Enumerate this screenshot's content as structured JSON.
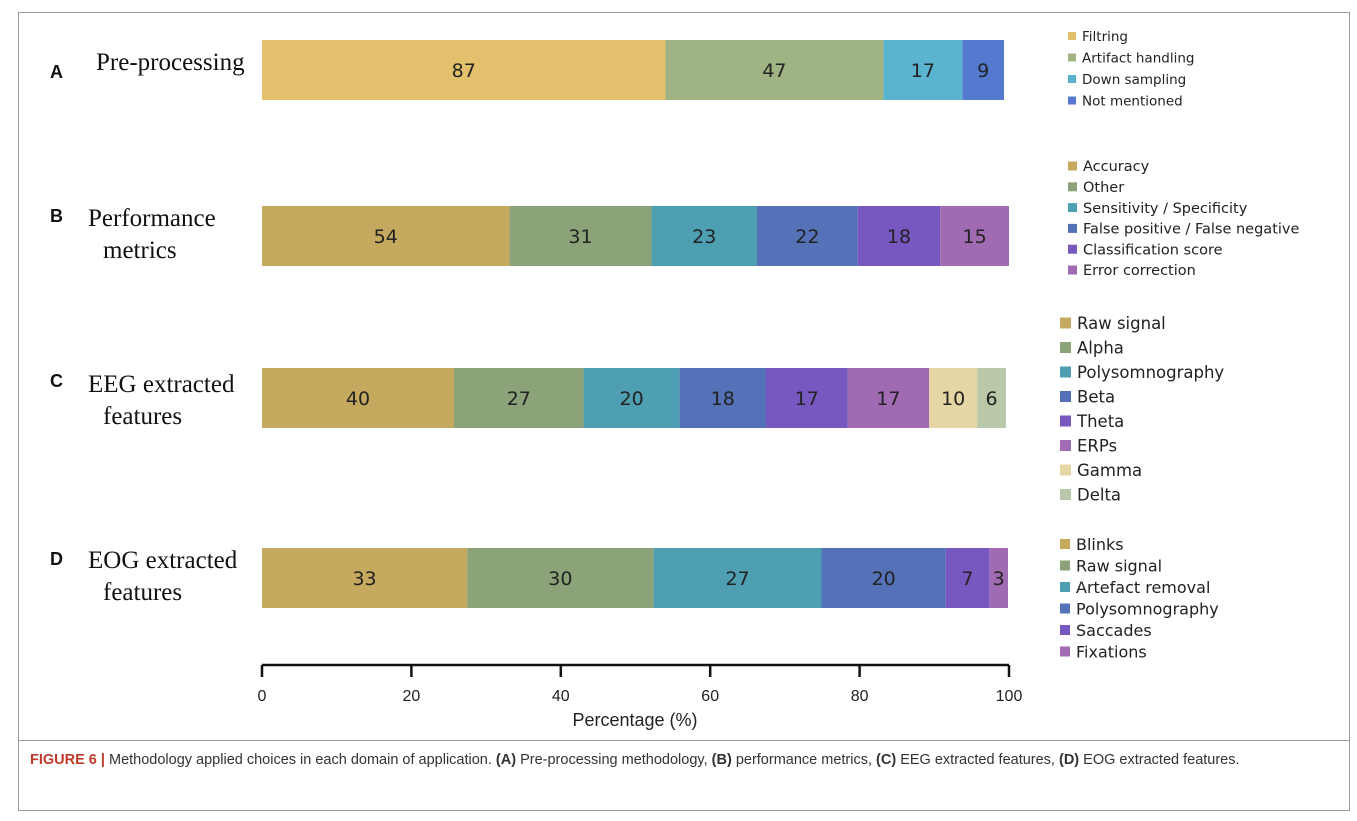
{
  "chart_data": [
    {
      "type": "bar",
      "orientation": "horizontal-stacked",
      "panel": "A",
      "title": "Pre-processing",
      "series": [
        {
          "name": "Filtring",
          "value": 87,
          "color": "#e3c06b"
        },
        {
          "name": "Artifact handling",
          "value": 47,
          "color": "#9fb383"
        },
        {
          "name": "Down sampling",
          "value": 17,
          "color": "#5ab3cf"
        },
        {
          "name": "Not mentioned",
          "value": 9,
          "color": "#5479cf"
        }
      ]
    },
    {
      "type": "bar",
      "orientation": "horizontal-stacked",
      "panel": "B",
      "title": "Performance metrics",
      "series": [
        {
          "name": "Accuracy",
          "value": 54,
          "color": "#c4a95e"
        },
        {
          "name": "Other",
          "value": 31,
          "color": "#8ca278"
        },
        {
          "name": "Sensitivity / Specificity",
          "value": 23,
          "color": "#4f9fb3"
        },
        {
          "name": "False positive / False negative",
          "value": 22,
          "color": "#5571b7"
        },
        {
          "name": "Classification score",
          "value": 18,
          "color": "#7757c0"
        },
        {
          "name": " Error correction",
          "value": 15,
          "color": "#a06bb2"
        }
      ]
    },
    {
      "type": "bar",
      "orientation": "horizontal-stacked",
      "panel": "C",
      "title": "EEG extracted features",
      "series": [
        {
          "name": "Raw signal",
          "value": 40,
          "color": "#c4a95e"
        },
        {
          "name": "Alpha",
          "value": 27,
          "color": "#8ca278"
        },
        {
          "name": "Polysomnography",
          "value": 20,
          "color": "#4f9fb3"
        },
        {
          "name": "Beta",
          "value": 18,
          "color": "#5571b7"
        },
        {
          "name": "Theta",
          "value": 17,
          "color": "#7757c0"
        },
        {
          "name": "ERPs",
          "value": 17,
          "color": "#a06bb2"
        },
        {
          "name": "Gamma",
          "value": 10,
          "color": "#e6d6a6"
        },
        {
          "name": "Delta",
          "value": 6,
          "color": "#b8c8a8"
        }
      ]
    },
    {
      "type": "bar",
      "orientation": "horizontal-stacked",
      "panel": "D",
      "title": "EOG extracted features",
      "series": [
        {
          "name": "Blinks",
          "value": 33,
          "color": "#c4a95e"
        },
        {
          "name": "Raw signal",
          "value": 30,
          "color": "#8ca278"
        },
        {
          "name": "Artefact removal",
          "value": 27,
          "color": "#4f9fb3"
        },
        {
          "name": "Polysomnography",
          "value": 20,
          "color": "#5571b7"
        },
        {
          "name": "Saccades",
          "value": 7,
          "color": "#7757c0"
        },
        {
          "name": "Fixations",
          "value": 3,
          "color": "#a06bb2"
        }
      ]
    }
  ],
  "axis": {
    "xlabel": "Percentage (%)",
    "xlim": [
      0,
      100
    ],
    "ticks": [
      "0",
      "20",
      "40",
      "60",
      "80",
      "100"
    ]
  },
  "caption": {
    "figure_label": "FIGURE 6 |",
    "text_1": " Methodology applied choices in each domain of application. ",
    "a_label": "(A)",
    "a_text": " Pre-processing methodology, ",
    "b_label": "(B)",
    "b_text": " performance metrics, ",
    "c_label": "(C)",
    "c_text": " EEG extracted features, ",
    "d_label": "(D)",
    "d_text": " EOG extracted features."
  }
}
